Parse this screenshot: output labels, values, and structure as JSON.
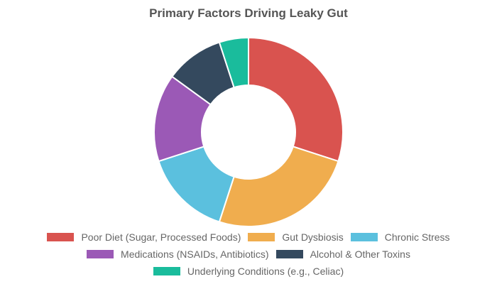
{
  "chart_data": {
    "type": "pie",
    "variant": "doughnut",
    "title": "Primary Factors Driving Leaky Gut",
    "categories": [
      "Poor Diet (Sugar, Processed Foods)",
      "Gut Dysbiosis",
      "Chronic Stress",
      "Medications (NSAIDs, Antibiotics)",
      "Alcohol & Other Toxins",
      "Underlying Conditions (e.g., Celiac)"
    ],
    "values": [
      30,
      25,
      15,
      15,
      10,
      5
    ],
    "colors": [
      "#d9534f",
      "#f0ad4e",
      "#5bc0de",
      "#9b59b6",
      "#34495e",
      "#1abc9c"
    ],
    "legend_position": "bottom",
    "legend_rows": [
      [
        0,
        1,
        2
      ],
      [
        3,
        4
      ],
      [
        5
      ]
    ]
  }
}
